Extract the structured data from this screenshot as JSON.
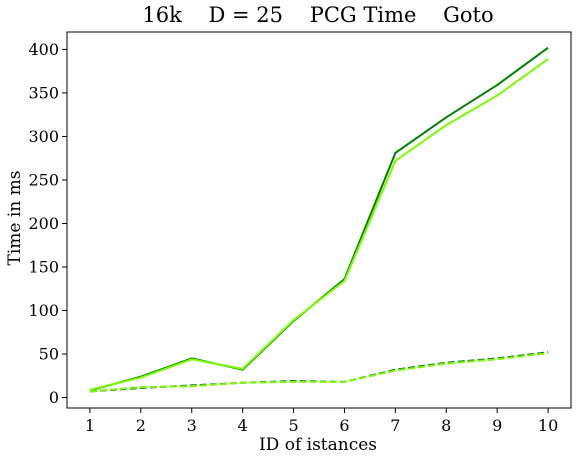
{
  "chart_data": {
    "type": "line",
    "title": "16k    D = 25    PCG Time    Goto",
    "xlabel": "ID of istances",
    "ylabel": "Time in ms",
    "x": [
      1,
      2,
      3,
      4,
      5,
      6,
      7,
      8,
      9,
      10
    ],
    "xlim": [
      0.55,
      10.45
    ],
    "ylim": [
      -12,
      420
    ],
    "xticks": [
      1,
      2,
      3,
      4,
      5,
      6,
      7,
      8,
      9,
      10
    ],
    "yticks": [
      0,
      50,
      100,
      150,
      200,
      250,
      300,
      350,
      400
    ],
    "grid": false,
    "legend": "none",
    "series": [
      {
        "color": "#008000",
        "style": "solid",
        "values": [
          8,
          24,
          45,
          32,
          88,
          136,
          281,
          322,
          359,
          402
        ]
      },
      {
        "color": "#7CFC00",
        "style": "solid",
        "values": [
          9,
          23,
          44,
          33,
          89,
          134,
          272,
          313,
          347,
          389
        ]
      },
      {
        "color": "#008000",
        "style": "dashed",
        "values": [
          7,
          11,
          14,
          17,
          19,
          18,
          32,
          40,
          45,
          52
        ]
      },
      {
        "color": "#7CFC00",
        "style": "dashed",
        "values": [
          7,
          12,
          13,
          17,
          18,
          18,
          31,
          39,
          44,
          51
        ]
      }
    ]
  }
}
